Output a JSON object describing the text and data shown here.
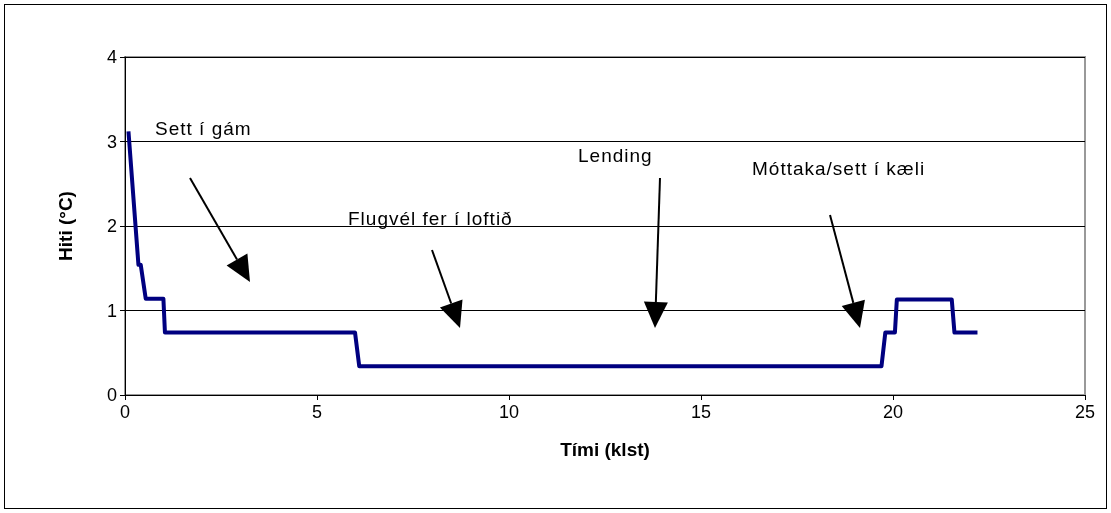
{
  "chart_data": {
    "type": "line",
    "xlabel": "Tími (klst)",
    "ylabel": "Hiti (°C)",
    "x": [
      0.09,
      0.35,
      0.41,
      0.54,
      1.0,
      1.04,
      5.99,
      6.1,
      19.7,
      19.8,
      20.05,
      20.1,
      21.53,
      21.6,
      22.2
    ],
    "series": [
      {
        "color": "#000080",
        "values": [
          3.12,
          1.54,
          1.54,
          1.14,
          1.14,
          0.74,
          0.74,
          0.34,
          0.34,
          0.74,
          0.74,
          1.13,
          1.13,
          0.74,
          0.74
        ]
      }
    ],
    "xlim": [
      0,
      25
    ],
    "xticks": [
      0,
      5,
      10,
      15,
      20,
      25
    ],
    "ylim": [
      0,
      4
    ],
    "yticks": [
      0,
      1,
      2,
      3,
      4
    ],
    "grid": "y",
    "marker": "none",
    "line_style": "solid",
    "annotations": [
      "Sett í gám",
      "Flugvél fer í loftið",
      "Lending",
      "Móttaka/sett í kæli"
    ]
  }
}
